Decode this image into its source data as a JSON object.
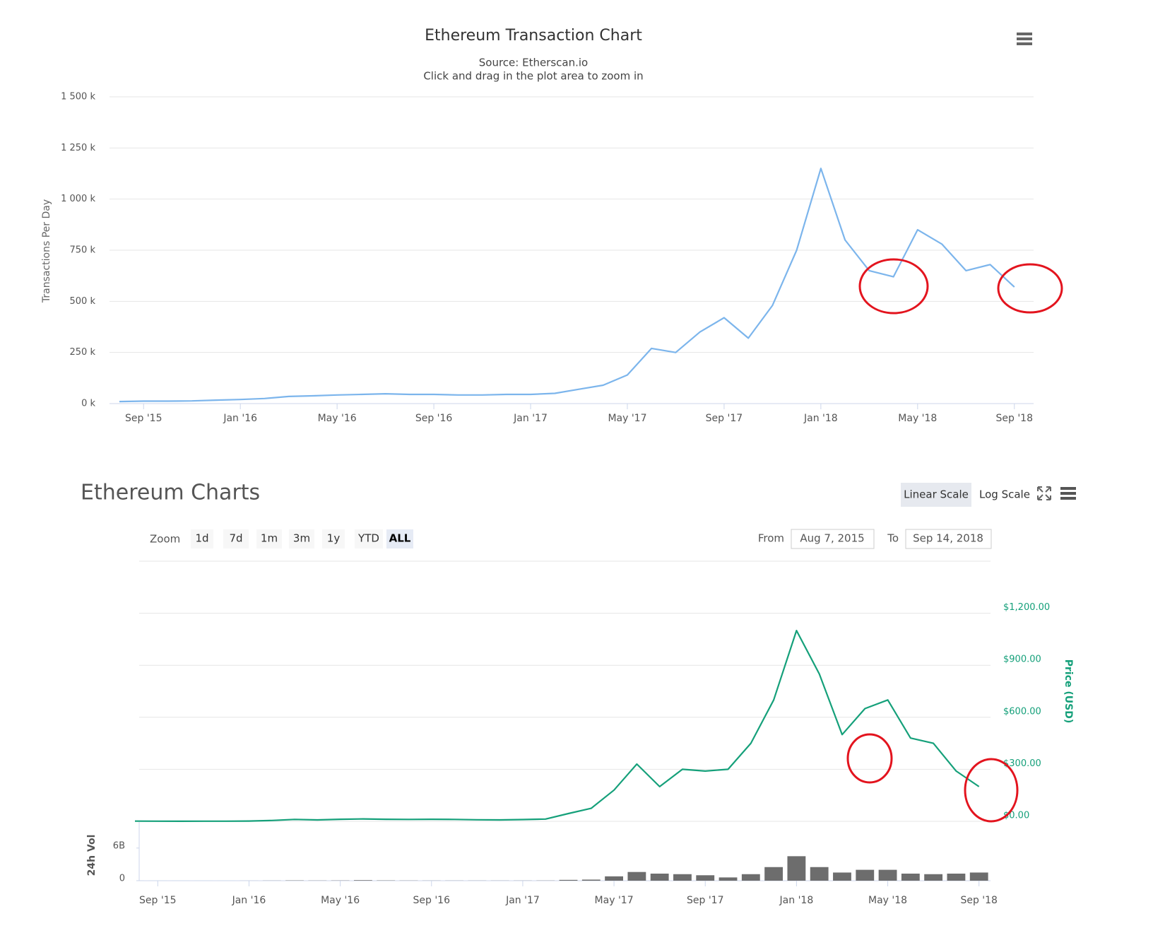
{
  "chart_data": [
    {
      "type": "line",
      "title": "Ethereum Transaction Chart",
      "subtitle": "Source: Etherscan.io",
      "note": "Click and drag in the plot area to zoom in",
      "y_label": "Transactions Per Day",
      "color": "#7cb5ec",
      "grid": true,
      "x": [
        "2015-08",
        "2015-09",
        "2015-10",
        "2015-11",
        "2015-12",
        "2016-01",
        "2016-02",
        "2016-03",
        "2016-04",
        "2016-05",
        "2016-06",
        "2016-07",
        "2016-08",
        "2016-09",
        "2016-10",
        "2016-11",
        "2016-12",
        "2017-01",
        "2017-02",
        "2017-03",
        "2017-04",
        "2017-05",
        "2017-06",
        "2017-07",
        "2017-08",
        "2017-09",
        "2017-10",
        "2017-11",
        "2017-12",
        "2018-01",
        "2018-02",
        "2018-03",
        "2018-04",
        "2018-05",
        "2018-06",
        "2018-07",
        "2018-08",
        "2018-09"
      ],
      "values": [
        10000,
        12000,
        12000,
        13000,
        17000,
        20000,
        25000,
        35000,
        38000,
        42000,
        45000,
        48000,
        45000,
        45000,
        42000,
        42000,
        45000,
        45000,
        50000,
        70000,
        90000,
        140000,
        270000,
        250000,
        350000,
        420000,
        320000,
        480000,
        750000,
        1150000,
        800000,
        650000,
        620000,
        850000,
        780000,
        650000,
        680000,
        570000
      ],
      "xlim": [
        "2015-08",
        "2018-10"
      ],
      "xticks": [
        {
          "value": "2015-09",
          "label": "Sep '15"
        },
        {
          "value": "2016-01",
          "label": "Jan '16"
        },
        {
          "value": "2016-05",
          "label": "May '16"
        },
        {
          "value": "2016-09",
          "label": "Sep '16"
        },
        {
          "value": "2017-01",
          "label": "Jan '17"
        },
        {
          "value": "2017-05",
          "label": "May '17"
        },
        {
          "value": "2017-09",
          "label": "Sep '17"
        },
        {
          "value": "2018-01",
          "label": "Jan '18"
        },
        {
          "value": "2018-05",
          "label": "May '18"
        },
        {
          "value": "2018-09",
          "label": "Sep '18"
        }
      ],
      "ylim": [
        0,
        1500000
      ],
      "yticks": [
        {
          "value": 0,
          "label": "0 k"
        },
        {
          "value": 250000,
          "label": "250 k"
        },
        {
          "value": 500000,
          "label": "500 k"
        },
        {
          "value": 750000,
          "label": "750 k"
        },
        {
          "value": 1000000,
          "label": "1 000 k"
        },
        {
          "value": 1250000,
          "label": "1 250 k"
        },
        {
          "value": 1500000,
          "label": "1 500 k"
        }
      ]
    },
    {
      "type": "line",
      "title": "Ethereum Charts",
      "y_label": "Price (USD)",
      "color": "#15a07a",
      "grid": true,
      "scale_buttons": [
        "Linear Scale",
        "Log Scale"
      ],
      "scale_active": 0,
      "zoom_label": "Zoom",
      "zoom_buttons": [
        "1d",
        "7d",
        "1m",
        "3m",
        "1y",
        "YTD",
        "ALL"
      ],
      "zoom_active": 6,
      "from_label": "From",
      "from": "Aug 7, 2015",
      "to_label": "To",
      "to": "Sep 14, 2018",
      "x": [
        "2015-08",
        "2015-09",
        "2015-10",
        "2015-11",
        "2015-12",
        "2016-01",
        "2016-02",
        "2016-03",
        "2016-04",
        "2016-05",
        "2016-06",
        "2016-07",
        "2016-08",
        "2016-09",
        "2016-10",
        "2016-11",
        "2016-12",
        "2017-01",
        "2017-02",
        "2017-03",
        "2017-04",
        "2017-05",
        "2017-06",
        "2017-07",
        "2017-08",
        "2017-09",
        "2017-10",
        "2017-11",
        "2017-12",
        "2018-01",
        "2018-02",
        "2018-03",
        "2018-04",
        "2018-05",
        "2018-06",
        "2018-07",
        "2018-08",
        "2018-09"
      ],
      "values": [
        1.2,
        0.9,
        0.6,
        0.9,
        0.9,
        1.5,
        5,
        11,
        8,
        12,
        14,
        12,
        11,
        12,
        11,
        9,
        8,
        10,
        13,
        45,
        75,
        180,
        330,
        200,
        300,
        290,
        300,
        450,
        700,
        1100,
        850,
        500,
        650,
        700,
        480,
        450,
        290,
        200
      ],
      "xlim": [
        "2015-08",
        "2018-10"
      ],
      "ylim": [
        0,
        1500
      ],
      "yticks": [
        {
          "value": 0,
          "label": "$0.00"
        },
        {
          "value": 300,
          "label": "$300.00"
        },
        {
          "value": 600,
          "label": "$600.00"
        },
        {
          "value": 900,
          "label": "$900.00"
        },
        {
          "value": 1200,
          "label": "$1,200.00"
        }
      ]
    },
    {
      "type": "bar",
      "y_label": "24h Vol",
      "color": "#6d6d6d",
      "x": [
        "2015-08",
        "2015-09",
        "2015-10",
        "2015-11",
        "2015-12",
        "2016-01",
        "2016-02",
        "2016-03",
        "2016-04",
        "2016-05",
        "2016-06",
        "2016-07",
        "2016-08",
        "2016-09",
        "2016-10",
        "2016-11",
        "2016-12",
        "2017-01",
        "2017-02",
        "2017-03",
        "2017-04",
        "2017-05",
        "2017-06",
        "2017-07",
        "2017-08",
        "2017-09",
        "2017-10",
        "2017-11",
        "2017-12",
        "2018-01",
        "2018-02",
        "2018-03",
        "2018-04",
        "2018-05",
        "2018-06",
        "2018-07",
        "2018-08",
        "2018-09"
      ],
      "values": [
        2000000,
        1000000,
        1000000,
        1000000,
        1000000,
        5000000,
        20000000,
        50000000,
        30000000,
        40000000,
        100000000,
        50000000,
        30000000,
        20000000,
        20000000,
        20000000,
        20000000,
        20000000,
        30000000,
        150000000,
        200000000,
        800000000,
        1600000000,
        1300000000,
        1200000000,
        1000000000,
        600000000,
        1200000000,
        2500000000,
        4500000000,
        2500000000,
        1500000000,
        2000000000,
        2000000000,
        1300000000,
        1200000000,
        1300000000,
        1500000000
      ],
      "xlim": [
        "2015-08",
        "2018-10"
      ],
      "xticks": [
        {
          "value": "2015-09",
          "label": "Sep '15"
        },
        {
          "value": "2016-01",
          "label": "Jan '16"
        },
        {
          "value": "2016-05",
          "label": "May '16"
        },
        {
          "value": "2016-09",
          "label": "Sep '16"
        },
        {
          "value": "2017-01",
          "label": "Jan '17"
        },
        {
          "value": "2017-05",
          "label": "May '17"
        },
        {
          "value": "2017-09",
          "label": "Sep '17"
        },
        {
          "value": "2018-01",
          "label": "Jan '18"
        },
        {
          "value": "2018-05",
          "label": "May '18"
        },
        {
          "value": "2018-09",
          "label": "Sep '18"
        }
      ],
      "ylim": [
        0,
        10000000000
      ],
      "yticks": [
        0,
        {
          "value": 6000000000,
          "label": "6B"
        }
      ]
    }
  ]
}
